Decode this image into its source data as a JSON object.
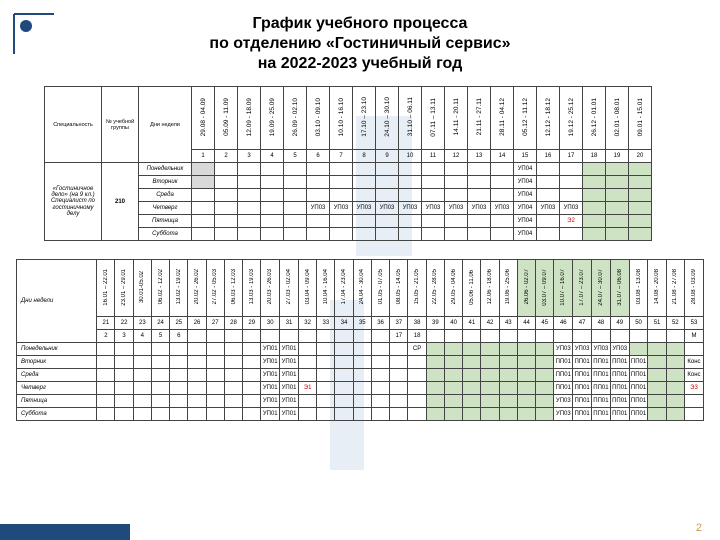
{
  "title_l1": "График учебного процесса",
  "title_l2": "по отделению «Гостиничный сервис»",
  "title_l3": "на 2022-2023 учебный год",
  "pageNumber": "2",
  "corner_color": "#204a7b",
  "band_color": "#e8eef6",
  "green": "#cde3c4",
  "topHeaders": {
    "col1": "Специальность",
    "col2": "№ учебной группы",
    "col3": "Дни недели"
  },
  "topDates": [
    "29.08 - 04.09",
    "05.09 - 11.09",
    "12.09 - 18.09",
    "19.09 - 25.09",
    "26.09 - 02.10",
    "03.10 - 09.10",
    "10.10 - 16.10",
    "17.10 – 23.10",
    "24.10 – 30.10",
    "31.10 – 06.11",
    "07.11 – 13.11",
    "14.11 - 20.11",
    "21.11 - 27.11",
    "28.11 - 04.12",
    "05.12 - 11.12",
    "12.12 - 18.12",
    "19.12 - 25.12",
    "26.12 - 01.01",
    "02.01 - 08.01",
    "09.01 - 15.01"
  ],
  "topNums": [
    "1",
    "2",
    "3",
    "4",
    "5",
    "6",
    "7",
    "8",
    "9",
    "10",
    "11",
    "12",
    "13",
    "14",
    "15",
    "16",
    "17",
    "18",
    "19",
    "20"
  ],
  "speciality": "«Гостиничное дело» (на 9 кл.) Специалист по гостиничному делу",
  "group": "210",
  "days": [
    "Понедельник",
    "Вторник",
    "Среда",
    "Четверг",
    "Пятница",
    "Суббота"
  ],
  "upCells": {
    "row0": {
      "14": "УП04"
    },
    "row1": {
      "14": "УП04"
    },
    "row2": {
      "14": "УП04"
    },
    "row3": {
      "5": "УП03",
      "6": "УП03",
      "7": "УП03",
      "8": "УП03",
      "9": "УП03",
      "10": "УП03",
      "11": "УП03",
      "12": "УП03",
      "13": "УП03",
      "14": "УП04",
      "15": "УП03",
      "16": "УП03"
    },
    "row4": {
      "14": "УП04",
      "16": "Э2",
      "_red": "16"
    },
    "row5": {
      "14": "УП04"
    }
  },
  "botDates": [
    "16.01 – 22.01",
    "23.01 – 29.01",
    "30.01-05.02",
    "06.02 - 12.02",
    "13.02 - 19.02",
    "20.02 - 26.02",
    "27.02 - 05.03",
    "06.03 - 12.03",
    "13.03 - 19.03",
    "20.03 - 26.03",
    "27.03 - 02.04",
    "03.04 - 09.04",
    "10.04 - 16.04",
    "17.04 - 23.04",
    "24.04 - 30.04",
    "01.05 - 07.05",
    "08.05 - 14.05",
    "15.05 - 21.05",
    "22.05 - 28.05",
    "29.05 - 04.06",
    "05.06 - 11.06",
    "12.06 - 18.06",
    "19.06 - 25.06",
    "26.06 - 02.07",
    "03.07 – 09.07",
    "10.07 – 16.07",
    "17.07 – 23.07",
    "24.07 – 30.07",
    "31.07 – 06.08",
    "03.08 - 13.08",
    "14.08 - 20.08",
    "21.08 - 27.08",
    "28.08 - 03.09"
  ],
  "botNums": [
    "21",
    "22",
    "23",
    "24",
    "25",
    "26",
    "27",
    "28",
    "29",
    "30",
    "31",
    "32",
    "33",
    "34",
    "35",
    "36",
    "37",
    "38",
    "39",
    "40",
    "41",
    "42",
    "43",
    "44",
    "45",
    "46",
    "47",
    "48",
    "49",
    "50",
    "51",
    "52",
    "53"
  ],
  "botExtra": [
    "2",
    "3",
    "4",
    "5",
    "6",
    "",
    "",
    "",
    "",
    "",
    "",
    "",
    "",
    "",
    "",
    "",
    "17",
    "18",
    "",
    "",
    "",
    "",
    "",
    "",
    "",
    "",
    "",
    "",
    "",
    "",
    "",
    "",
    "M"
  ],
  "botLabelCol": "Дни недели",
  "bot": {
    "rows": [
      {
        "day": "Понедельник",
        "cells": {
          "10": "УП01",
          "11": "УП01",
          "18": "СР",
          "26": "УП03",
          "27": "УП03",
          "28": "УП03",
          "29": "УП03"
        },
        "green": [
          19,
          20,
          21,
          22,
          23,
          24,
          25,
          30,
          31,
          32
        ]
      },
      {
        "day": "Вторник",
        "cells": {
          "10": "УП01",
          "11": "УП01",
          "26": "ПП01",
          "27": "ПП01",
          "28": "ПП01",
          "29": "ПП01",
          "30": "ПП01",
          "33": "Конс"
        },
        "green": [
          19,
          20,
          21,
          22,
          23,
          24,
          25,
          31,
          32
        ]
      },
      {
        "day": "Среда",
        "cells": {
          "10": "УП01",
          "11": "УП01",
          "26": "ПП01",
          "27": "ПП01",
          "28": "ПП01",
          "29": "ПП01",
          "30": "ПП01",
          "33": "Конс"
        },
        "green": [
          19,
          20,
          21,
          22,
          23,
          24,
          25,
          31,
          32
        ]
      },
      {
        "day": "Четверг",
        "cells": {
          "10": "УП01",
          "11": "УП01",
          "12": "Э1",
          "26": "ПП01",
          "27": "ПП01",
          "28": "ПП01",
          "29": "ПП01",
          "30": "ПП01",
          "33": "Э3"
        },
        "red": [
          "12",
          "33"
        ],
        "green": [
          19,
          20,
          21,
          22,
          23,
          24,
          25,
          31,
          32
        ]
      },
      {
        "day": "Пятница",
        "cells": {
          "10": "УП01",
          "11": "УП01",
          "26": "УП03",
          "27": "ПП01",
          "28": "ПП01",
          "29": "ПП01",
          "30": "ПП01"
        },
        "green": [
          19,
          20,
          21,
          22,
          23,
          24,
          25,
          31,
          32
        ]
      },
      {
        "day": "Суббота",
        "cells": {
          "10": "УП01",
          "11": "УП01",
          "26": "УП03",
          "27": "ПП01",
          "28": "ПП01",
          "29": "ПП01",
          "30": "ПП01"
        },
        "green": [
          19,
          20,
          21,
          22,
          23,
          24,
          25,
          31,
          32
        ]
      }
    ]
  }
}
